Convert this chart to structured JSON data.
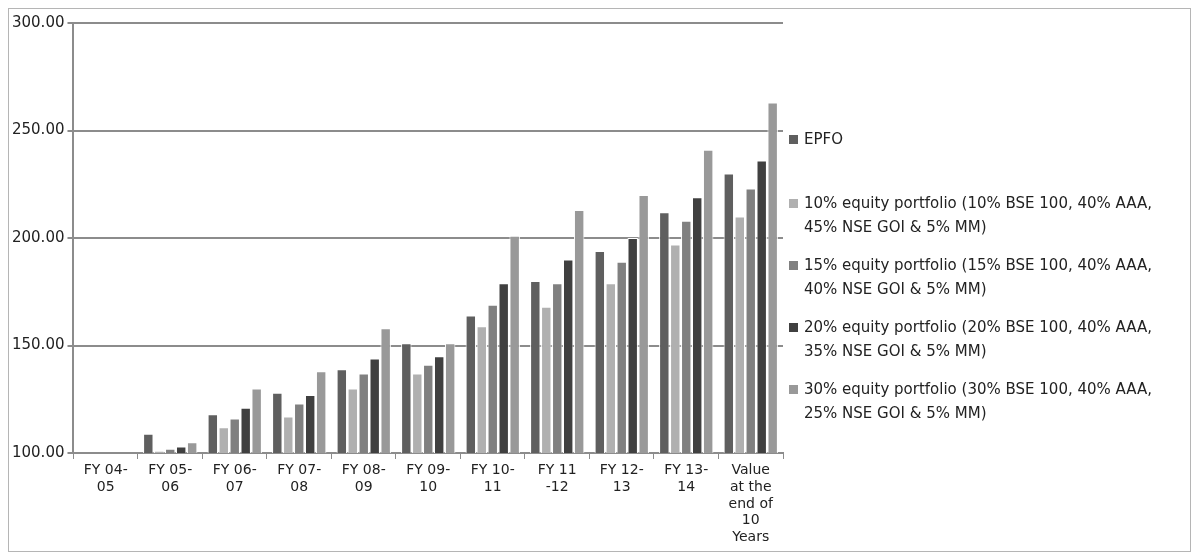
{
  "chart_data": {
    "type": "bar",
    "categories": [
      "FY 04-05",
      "FY 05-06",
      "FY 06-07",
      "FY 07-08",
      "FY 08-09",
      "FY 09-10",
      "FY 10-11",
      "FY 11 -12",
      "FY 12-13",
      "FY 13-14",
      "Value at the end of 10 Years"
    ],
    "series": [
      {
        "name": "EPFO",
        "color": "#5f5f5f",
        "values": [
          100,
          109,
          118,
          128,
          139,
          151,
          164,
          180,
          194,
          212,
          230
        ]
      },
      {
        "name": "10% equity portfolio (10% BSE 100, 40% AAA, 45% NSE GOI & 5% MM)",
        "color": "#b0b0b0",
        "values": [
          100,
          101,
          112,
          117,
          130,
          137,
          159,
          168,
          179,
          197,
          210
        ]
      },
      {
        "name": "15% equity portfolio (15% BSE 100, 40% AAA, 40% NSE GOI & 5% MM)",
        "color": "#808080",
        "values": [
          100,
          102,
          116,
          123,
          137,
          141,
          169,
          179,
          189,
          208,
          223
        ]
      },
      {
        "name": "20% equity portfolio (20% BSE 100, 40% AAA, 35% NSE GOI & 5% MM)",
        "color": "#404040",
        "values": [
          100,
          103,
          121,
          127,
          144,
          145,
          179,
          190,
          200,
          219,
          236
        ]
      },
      {
        "name": "30% equity portfolio (30% BSE 100, 40% AAA, 25% NSE GOI & 5% MM)",
        "color": "#999999",
        "values": [
          100,
          105,
          130,
          138,
          158,
          151,
          201,
          213,
          220,
          241,
          263
        ]
      }
    ],
    "ylim": [
      100,
      300
    ],
    "yticks": [
      {
        "value": 100,
        "label": "100.00"
      },
      {
        "value": 150,
        "label": "150.00"
      },
      {
        "value": 200,
        "label": "200.00"
      },
      {
        "value": 250,
        "label": "250.00"
      },
      {
        "value": 300,
        "label": "300.00"
      }
    ],
    "grid": "y",
    "legend": "right"
  }
}
